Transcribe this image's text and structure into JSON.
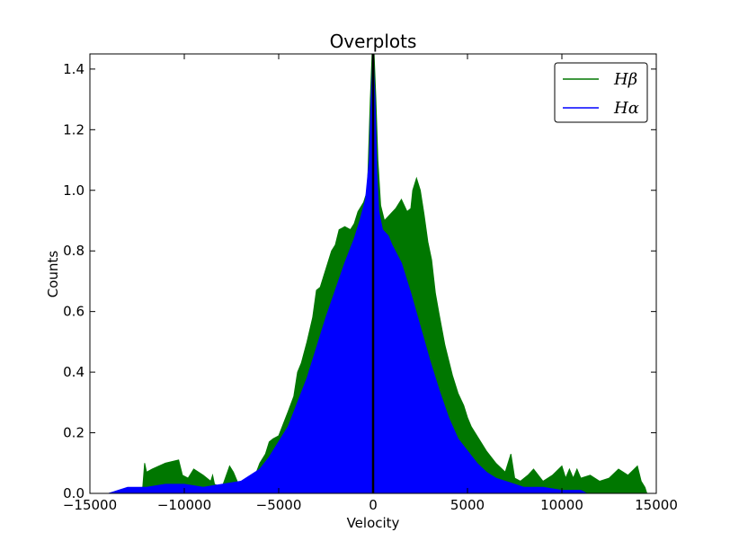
{
  "chart_data": {
    "type": "area",
    "title": "Overplots",
    "xlabel": "Velocity",
    "ylabel": "Counts",
    "xlim": [
      -15000,
      15000
    ],
    "ylim": [
      0,
      1.45
    ],
    "xticks": [
      -15000,
      -10000,
      -5000,
      0,
      5000,
      10000,
      15000
    ],
    "xtick_labels": [
      "−15000",
      "−10000",
      "−5000",
      "0",
      "5000",
      "10000",
      "15000"
    ],
    "yticks": [
      0.0,
      0.2,
      0.4,
      0.6,
      0.8,
      1.0,
      1.2,
      1.4
    ],
    "ytick_labels": [
      "0.0",
      "0.2",
      "0.4",
      "0.6",
      "0.8",
      "1.0",
      "1.2",
      "1.4"
    ],
    "grid": false,
    "legend_position": "top-right",
    "vertical_line": {
      "x": 0,
      "color": "#000000"
    },
    "series": [
      {
        "name": "Hβ",
        "color": "#007700",
        "x": [
          -14000,
          -13200,
          -12200,
          -12100,
          -12000,
          -11700,
          -11000,
          -10300,
          -10100,
          -9800,
          -9500,
          -9000,
          -8600,
          -8500,
          -8400,
          -8000,
          -7600,
          -7400,
          -7200,
          -7100,
          -6800,
          -6300,
          -6000,
          -5700,
          -5500,
          -5300,
          -5000,
          -4500,
          -4200,
          -4000,
          -3800,
          -3500,
          -3200,
          -3000,
          -2800,
          -2500,
          -2200,
          -2000,
          -1800,
          -1500,
          -1200,
          -1000,
          -800,
          -500,
          -300,
          -150,
          -50,
          0,
          50,
          150,
          250,
          400,
          600,
          900,
          1200,
          1500,
          1800,
          2000,
          2100,
          2300,
          2500,
          2700,
          2900,
          3100,
          3300,
          3500,
          3800,
          4000,
          4200,
          4500,
          4800,
          5000,
          5200,
          5600,
          6000,
          6500,
          7000,
          7300,
          7500,
          7800,
          8200,
          8500,
          9000,
          9500,
          10000,
          10200,
          10400,
          10600,
          10800,
          11000,
          11500,
          12000,
          12500,
          13000,
          13500,
          14000,
          14200,
          14400,
          14500
        ],
        "y": [
          0.0,
          0.01,
          0.02,
          0.1,
          0.07,
          0.08,
          0.1,
          0.11,
          0.06,
          0.05,
          0.08,
          0.06,
          0.04,
          0.06,
          0.03,
          0.02,
          0.09,
          0.07,
          0.04,
          0.03,
          0.02,
          0.05,
          0.1,
          0.13,
          0.17,
          0.18,
          0.19,
          0.27,
          0.32,
          0.4,
          0.43,
          0.5,
          0.58,
          0.67,
          0.68,
          0.74,
          0.8,
          0.82,
          0.87,
          0.88,
          0.87,
          0.89,
          0.93,
          0.96,
          1.0,
          1.3,
          1.45,
          1.45,
          1.45,
          1.3,
          1.1,
          0.95,
          0.9,
          0.92,
          0.94,
          0.97,
          0.93,
          0.94,
          1.0,
          1.04,
          1.0,
          0.92,
          0.83,
          0.77,
          0.66,
          0.59,
          0.49,
          0.44,
          0.39,
          0.33,
          0.29,
          0.25,
          0.22,
          0.18,
          0.14,
          0.1,
          0.07,
          0.13,
          0.05,
          0.04,
          0.06,
          0.08,
          0.04,
          0.06,
          0.09,
          0.05,
          0.08,
          0.05,
          0.08,
          0.05,
          0.06,
          0.04,
          0.05,
          0.08,
          0.06,
          0.09,
          0.04,
          0.02,
          0.0
        ]
      },
      {
        "name": "Hα",
        "color": "#0000ff",
        "x": [
          -14000,
          -13500,
          -13000,
          -12000,
          -11000,
          -10000,
          -9000,
          -8000,
          -7000,
          -6500,
          -6000,
          -5500,
          -5000,
          -4500,
          -4000,
          -3500,
          -3000,
          -2500,
          -2000,
          -1500,
          -1000,
          -700,
          -400,
          -200,
          -100,
          0,
          100,
          200,
          300,
          500,
          800,
          1000,
          1500,
          2000,
          2500,
          3000,
          3500,
          4000,
          4500,
          5000,
          5500,
          6000,
          6500,
          7000,
          7500,
          8000,
          9000,
          10000,
          10500,
          11000,
          11300
        ],
        "y": [
          0.0,
          0.01,
          0.02,
          0.02,
          0.03,
          0.03,
          0.02,
          0.03,
          0.04,
          0.06,
          0.08,
          0.12,
          0.17,
          0.22,
          0.3,
          0.38,
          0.48,
          0.58,
          0.67,
          0.76,
          0.84,
          0.9,
          0.97,
          1.1,
          1.3,
          1.45,
          1.3,
          1.05,
          0.93,
          0.87,
          0.85,
          0.82,
          0.76,
          0.66,
          0.55,
          0.44,
          0.34,
          0.25,
          0.18,
          0.14,
          0.1,
          0.07,
          0.05,
          0.04,
          0.03,
          0.02,
          0.02,
          0.01,
          0.01,
          0.01,
          0.0
        ]
      }
    ]
  }
}
